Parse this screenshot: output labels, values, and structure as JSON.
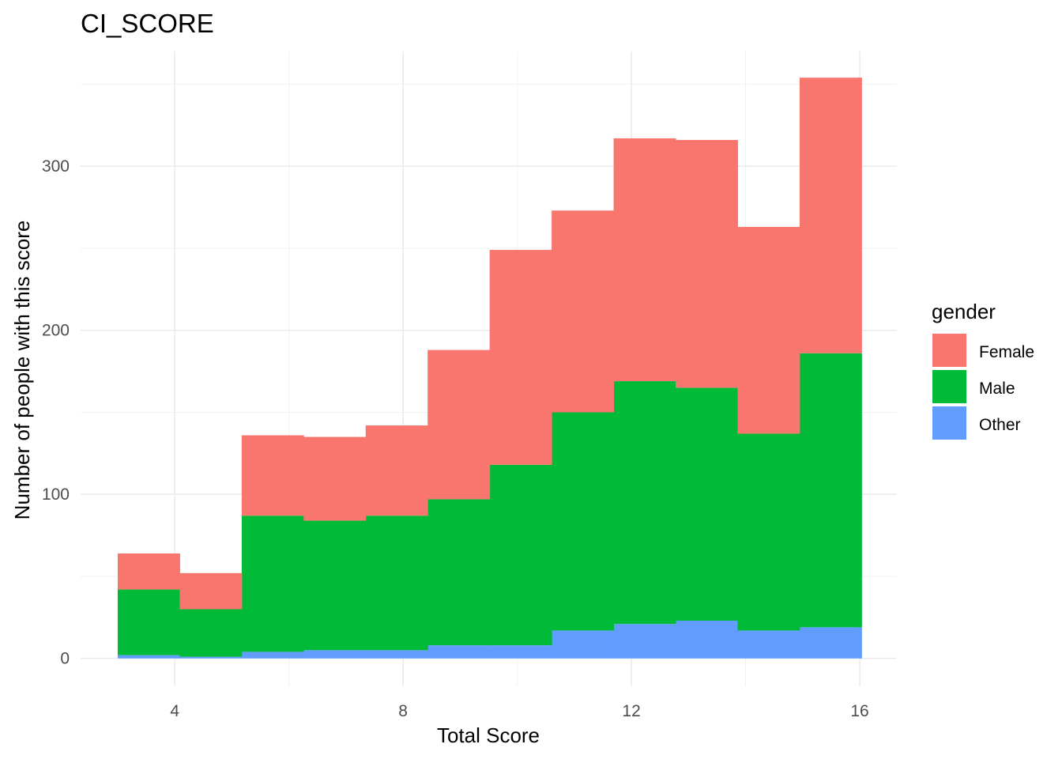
{
  "chart_data": {
    "type": "bar",
    "stacked": true,
    "title": "CI_SCORE",
    "xlabel": "Total Score",
    "ylabel": "Number of people with this score",
    "xlim": [
      2.35,
      16.65
    ],
    "ylim": [
      -17,
      370
    ],
    "x_ticks": [
      4,
      8,
      12,
      16
    ],
    "y_ticks": [
      0,
      100,
      200,
      300
    ],
    "grid": true,
    "legend_position": "right",
    "bin_edges": [
      3.0,
      4.086,
      5.172,
      6.258,
      7.344,
      8.43,
      9.516,
      10.602,
      11.688,
      12.774,
      13.86,
      14.946,
      16.032
    ],
    "series": [
      {
        "name": "Other",
        "color": "#619CFF",
        "values": [
          2,
          1,
          4,
          5,
          5,
          8,
          8,
          17,
          21,
          23,
          17,
          19
        ]
      },
      {
        "name": "Male",
        "color": "#00BA38",
        "values": [
          40,
          29,
          83,
          79,
          82,
          89,
          110,
          133,
          148,
          142,
          120,
          167
        ]
      },
      {
        "name": "Female",
        "color": "#F8766D",
        "values": [
          22,
          22,
          49,
          51,
          55,
          91,
          131,
          123,
          148,
          151,
          126,
          168
        ]
      }
    ],
    "legend": {
      "title": "gender",
      "entries": [
        {
          "label": "Female",
          "color": "#F8766D"
        },
        {
          "label": "Male",
          "color": "#00BA38"
        },
        {
          "label": "Other",
          "color": "#619CFF"
        }
      ]
    }
  }
}
